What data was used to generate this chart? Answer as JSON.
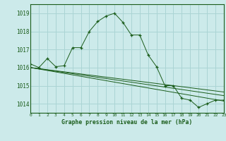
{
  "title": "Graphe pression niveau de la mer (hPa)",
  "background_color": "#cceaea",
  "grid_color": "#aad4d4",
  "line_color": "#1a5c1a",
  "xlim": [
    0,
    23
  ],
  "ylim": [
    1013.5,
    1019.5
  ],
  "yticks": [
    1014,
    1015,
    1016,
    1017,
    1018,
    1019
  ],
  "xticks": [
    0,
    1,
    2,
    3,
    4,
    5,
    6,
    7,
    8,
    9,
    10,
    11,
    12,
    13,
    14,
    15,
    16,
    17,
    18,
    19,
    20,
    21,
    22,
    23
  ],
  "series1": {
    "x": [
      0,
      1,
      2,
      3,
      4,
      5,
      6,
      7,
      8,
      9,
      10,
      11,
      12,
      13,
      14,
      15,
      16,
      17,
      18,
      19,
      20,
      21,
      22,
      23
    ],
    "y": [
      1016.2,
      1016.0,
      1016.5,
      1016.05,
      1016.1,
      1017.1,
      1017.1,
      1018.0,
      1018.55,
      1018.85,
      1019.0,
      1018.5,
      1017.8,
      1017.8,
      1016.7,
      1016.05,
      1015.0,
      1015.0,
      1014.3,
      1014.2,
      1013.8,
      1014.0,
      1014.2,
      1014.2
    ]
  },
  "series2": {
    "x": [
      0,
      23
    ],
    "y": [
      1016.0,
      1014.15
    ]
  },
  "series3": {
    "x": [
      0,
      23
    ],
    "y": [
      1016.0,
      1014.45
    ]
  },
  "series4": {
    "x": [
      0,
      23
    ],
    "y": [
      1016.0,
      1014.65
    ]
  }
}
